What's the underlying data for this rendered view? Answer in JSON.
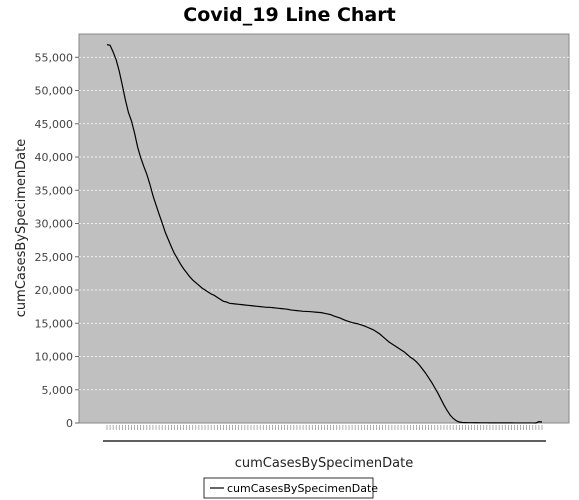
{
  "chart_data": {
    "type": "line",
    "title": "Covid_19 Line Chart",
    "xlabel": "cumCasesBySpecimenDate",
    "ylabel": "cumCasesBySpecimenDate",
    "ylim": [
      0,
      58500
    ],
    "yticks": [
      "0",
      "5,000",
      "10,000",
      "15,000",
      "20,000",
      "25,000",
      "30,000",
      "35,000",
      "40,000",
      "45,000",
      "50,000",
      "55,000"
    ],
    "ytick_values": [
      0,
      5000,
      10000,
      15000,
      20000,
      25000,
      30000,
      35000,
      40000,
      45000,
      50000,
      55000
    ],
    "grid": true,
    "legend_position": "bottom",
    "background_color": "#c0c0c0",
    "series": [
      {
        "name": "cumCasesBySpecimenDate",
        "color": "#000000",
        "values": [
          56900,
          56800,
          55800,
          54600,
          52900,
          50800,
          48600,
          46700,
          45400,
          43600,
          41500,
          39900,
          38600,
          37400,
          35900,
          34200,
          32800,
          31400,
          30100,
          28700,
          27600,
          26500,
          25500,
          24700,
          23900,
          23200,
          22600,
          22000,
          21500,
          21100,
          20700,
          20300,
          20000,
          19700,
          19400,
          19200,
          18900,
          18600,
          18300,
          18200,
          18000,
          17950,
          17900,
          17850,
          17800,
          17750,
          17700,
          17650,
          17600,
          17550,
          17500,
          17450,
          17400,
          17400,
          17350,
          17300,
          17250,
          17200,
          17150,
          17100,
          17000,
          16950,
          16900,
          16850,
          16800,
          16780,
          16760,
          16720,
          16680,
          16640,
          16600,
          16500,
          16400,
          16300,
          16100,
          15950,
          15800,
          15600,
          15400,
          15250,
          15100,
          15000,
          14900,
          14750,
          14600,
          14400,
          14200,
          14000,
          13700,
          13400,
          13000,
          12600,
          12200,
          11900,
          11600,
          11300,
          11000,
          10700,
          10300,
          9900,
          9600,
          9200,
          8700,
          8100,
          7500,
          6800,
          6100,
          5300,
          4500,
          3600,
          2700,
          1900,
          1200,
          700,
          350,
          150,
          80,
          60,
          50,
          45,
          40,
          35,
          30,
          28,
          26,
          24,
          22,
          20,
          18,
          16,
          15,
          14,
          13,
          12,
          11,
          10,
          9,
          8,
          7,
          6,
          5,
          200,
          150
        ]
      }
    ]
  }
}
